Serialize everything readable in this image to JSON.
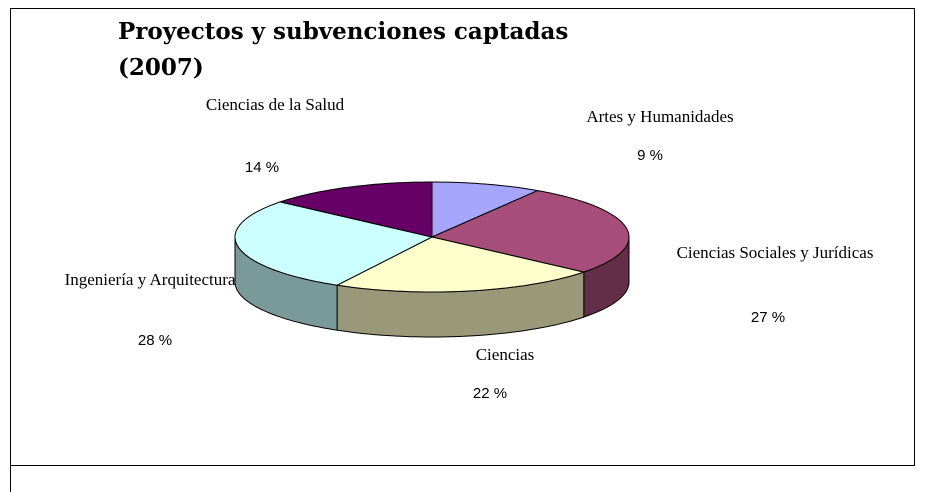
{
  "chart_data": {
    "type": "pie3d",
    "title": "Proyectos y subvenciones captadas (2007)",
    "categories": [
      "Artes y Humanidades",
      "Ciencias Sociales y Jurídicas",
      "Ciencias",
      "Ingeniería y Arquitectura",
      "Ciencias de la Salud"
    ],
    "values": [
      9,
      27,
      22,
      28,
      14
    ],
    "value_labels": [
      "9 %",
      "27 %",
      "22 %",
      "28 %",
      "14 %"
    ],
    "colors": [
      "#a6a6ff",
      "#a64d79",
      "#ffffcc",
      "#ccffff",
      "#660066"
    ]
  }
}
